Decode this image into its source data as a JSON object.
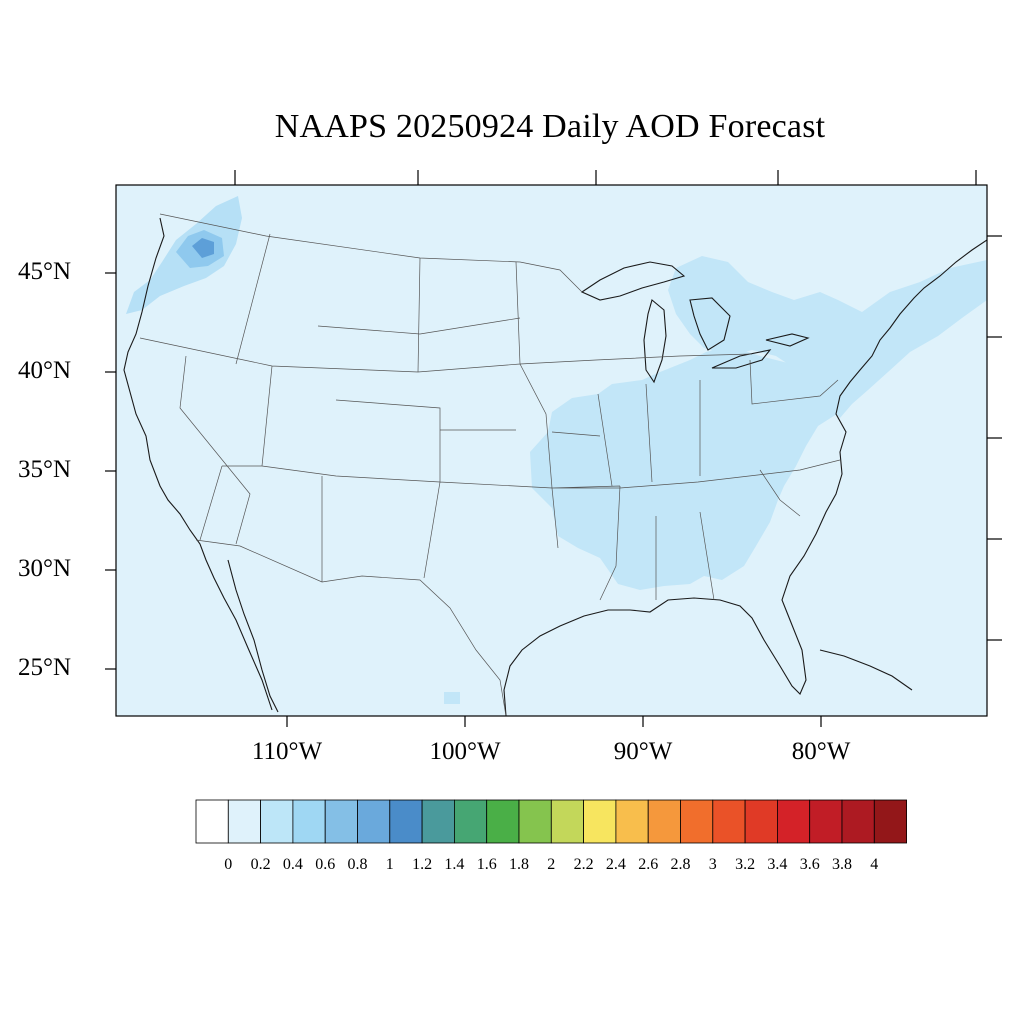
{
  "title": "NAAPS 20250924 Daily AOD Forecast",
  "map": {
    "extent": {
      "lon": [
        -119.8,
        -71.2
      ],
      "lat": [
        22.6,
        49.3
      ]
    },
    "lat_labels": [
      "45°N",
      "40°N",
      "35°N",
      "30°N",
      "25°N"
    ],
    "lon_labels": [
      "110°W",
      "100°W",
      "90°W",
      "80°W"
    ],
    "background_color": "#dff2fb",
    "regions": [
      {
        "name": "pacific-northwest-plume",
        "aod_range": "0.4-1.0"
      },
      {
        "name": "mississippi-ohio-valley",
        "aod_range": "0.2-0.4"
      },
      {
        "name": "northeast-corridor",
        "aod_range": "0.2-0.4"
      }
    ]
  },
  "colorbar": {
    "labels": [
      "0",
      "0.2",
      "0.4",
      "0.6",
      "0.8",
      "1",
      "1.2",
      "1.4",
      "1.6",
      "1.8",
      "2",
      "2.2",
      "2.4",
      "2.6",
      "2.8",
      "3",
      "3.2",
      "3.4",
      "3.6",
      "3.8",
      "4"
    ],
    "colors": [
      "#ffffff",
      "#dff2fb",
      "#bde6f8",
      "#9fd7f3",
      "#84bfe6",
      "#6aa9dc",
      "#4a8cc9",
      "#4a9a9c",
      "#46a673",
      "#4aaf47",
      "#85c44e",
      "#c3d75a",
      "#f7e55f",
      "#f8be4c",
      "#f5983c",
      "#f16e2c",
      "#ea5228",
      "#e03a26",
      "#d42228",
      "#c11d26",
      "#ad1a22",
      "#931719"
    ]
  }
}
